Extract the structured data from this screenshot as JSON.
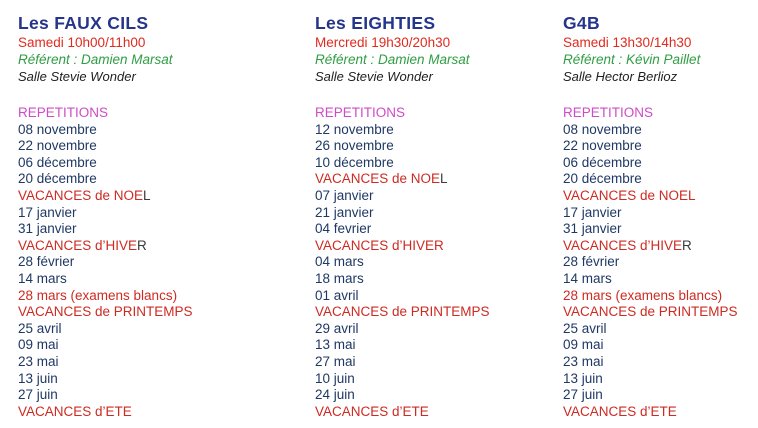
{
  "colors": {
    "background": "#ffffff",
    "title": "#26358c",
    "schedule": "#e02a1e",
    "referent": "#2f9e44",
    "room": "#1f1f1f",
    "section": "#cf4bc7",
    "date": "#1f3864",
    "vacances": "#ce2a22",
    "black_tail": "#3b3b3b"
  },
  "column_lefts": [
    18,
    315,
    563
  ],
  "columns": [
    {
      "id": "les-faux-cils",
      "title": "Les FAUX CILS",
      "schedule": "Samedi 10h00/11h00",
      "referent": "Référent : Damien Marsat",
      "room": "Salle Stevie Wonder",
      "section": "REPETITIONS",
      "lines": [
        {
          "text": "08 novembre",
          "type": "date"
        },
        {
          "text": "22 novembre",
          "type": "date"
        },
        {
          "text": "06 décembre",
          "type": "date"
        },
        {
          "text": "20 décembre",
          "type": "date"
        },
        {
          "text": "VACANCES de NOE",
          "black_tail": "L",
          "type": "vacances"
        },
        {
          "text": "17 janvier",
          "type": "date"
        },
        {
          "text": "31 janvier",
          "type": "date"
        },
        {
          "text": "VACANCES d’HIVE",
          "black_tail": "R",
          "type": "vacances"
        },
        {
          "text": "28 février",
          "type": "date"
        },
        {
          "text": "14 mars",
          "type": "date"
        },
        {
          "text": "28 mars (examens blancs)",
          "type": "exam"
        },
        {
          "text": "VACANCES de PRINTEMPS",
          "type": "vacances"
        },
        {
          "text": "25 avril",
          "type": "date"
        },
        {
          "text": "09 mai",
          "type": "date"
        },
        {
          "text": "23 mai",
          "type": "date"
        },
        {
          "text": "13 juin",
          "type": "date"
        },
        {
          "text": "27 juin",
          "type": "date"
        },
        {
          "text": "VACANCES d’ETE",
          "type": "vacances"
        }
      ]
    },
    {
      "id": "les-eighties",
      "title": "Les EIGHTIES",
      "schedule": "Mercredi 19h30/20h30",
      "referent": "Référent : Damien Marsat",
      "room": "Salle Stevie Wonder",
      "section": "REPETITIONS",
      "lines": [
        {
          "text": "12 novembre",
          "type": "date"
        },
        {
          "text": "26 novembre",
          "type": "date"
        },
        {
          "text": "10 décembre",
          "type": "date"
        },
        {
          "text": "VACANCES de NOE",
          "black_tail": "L",
          "type": "vacances"
        },
        {
          "text": "07 janvier",
          "type": "date"
        },
        {
          "text": "21 janvier",
          "type": "date"
        },
        {
          "text": "04 fevrier",
          "type": "date"
        },
        {
          "text": "VACANCES d’HIVER",
          "type": "vacances"
        },
        {
          "text": "04 mars",
          "type": "date"
        },
        {
          "text": "18 mars",
          "type": "date"
        },
        {
          "text": "01 avril",
          "type": "date"
        },
        {
          "text": "VACANCES de PRINTEMPS",
          "type": "vacances"
        },
        {
          "text": "29 avril",
          "type": "date"
        },
        {
          "text": "13 mai",
          "type": "date"
        },
        {
          "text": "27 mai",
          "type": "date"
        },
        {
          "text": "10 juin",
          "type": "date"
        },
        {
          "text": "24 juin",
          "type": "date"
        },
        {
          "text": "VACANCES d’ETE",
          "type": "vacances"
        }
      ]
    },
    {
      "id": "g4b",
      "title": "G4B",
      "schedule": "Samedi 13h30/14h30",
      "referent": "Référent : Kévin Paillet",
      "room": "Salle Hector Berlioz",
      "section": "REPETITIONS",
      "lines": [
        {
          "text": "08 novembre",
          "type": "date"
        },
        {
          "text": "22 novembre",
          "type": "date"
        },
        {
          "text": "06 décembre",
          "type": "date"
        },
        {
          "text": "20 décembre",
          "type": "date"
        },
        {
          "text": "VACANCES de NOEL",
          "type": "vacances"
        },
        {
          "text": "17 janvier",
          "type": "date"
        },
        {
          "text": "31 janvier",
          "type": "date"
        },
        {
          "text": "VACANCES d’HIVE",
          "black_tail": "R",
          "type": "vacances"
        },
        {
          "text": "28 février",
          "type": "date"
        },
        {
          "text": "14 mars",
          "type": "date"
        },
        {
          "text": "28 mars (examens blancs)",
          "type": "exam"
        },
        {
          "text": "VACANCES de PRINTEMPS",
          "type": "vacances"
        },
        {
          "text": "25 avril",
          "type": "date"
        },
        {
          "text": "09 mai",
          "type": "date"
        },
        {
          "text": "23 mai",
          "type": "date"
        },
        {
          "text": "13 juin",
          "type": "date"
        },
        {
          "text": "27 juin",
          "type": "date"
        },
        {
          "text": "VACANCES d’ETE",
          "type": "vacances"
        }
      ]
    }
  ]
}
